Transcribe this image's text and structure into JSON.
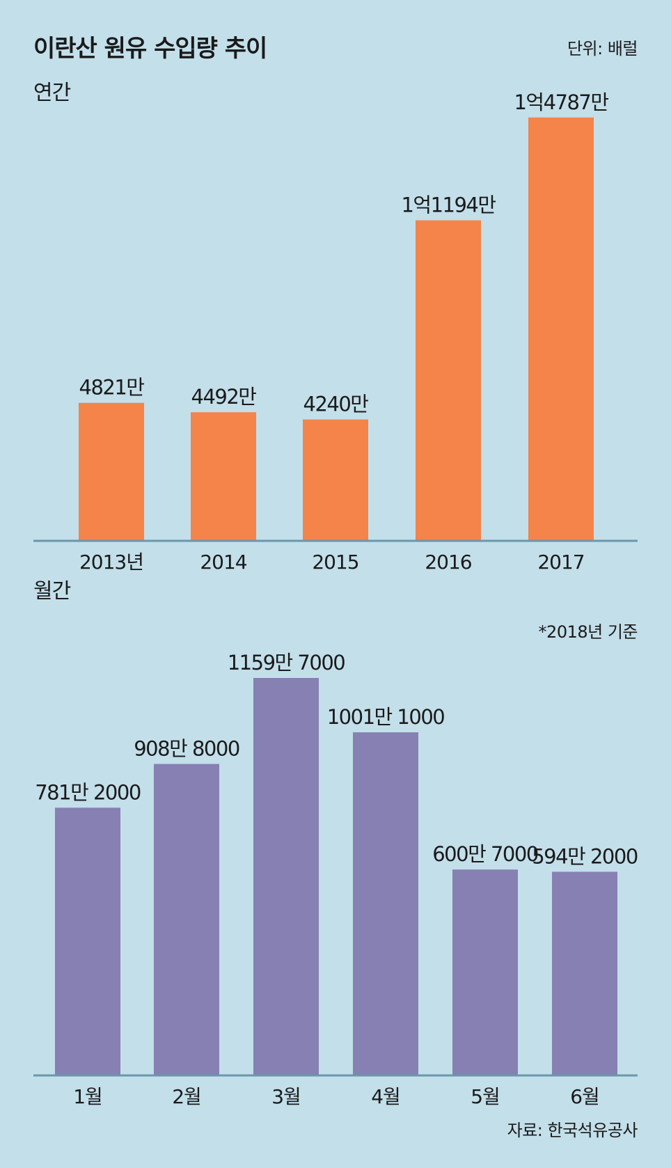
{
  "header": {
    "title": "이란산 원유 수입량 추이",
    "unit": "단위: 배럴"
  },
  "annual": {
    "label": "연간"
  },
  "monthly": {
    "label": "월간",
    "note": "*2018년 기준"
  },
  "source": "자료: 한국석유공사",
  "colors": {
    "background": "#c3dfea",
    "annual_bar": "#f4844a",
    "monthly_bar": "#8780b3",
    "axis": "#6a97ab"
  },
  "chart_data": [
    {
      "type": "bar",
      "title": "연간",
      "categories": [
        "2013년",
        "2014",
        "2015",
        "2016",
        "2017"
      ],
      "values": [
        48210000,
        44920000,
        42400000,
        111940000,
        147870000
      ],
      "data_labels": [
        "4821만",
        "4492만",
        "4240만",
        "1억1194만",
        "1억4787만"
      ],
      "ylim": [
        0,
        150000000
      ],
      "grid": false
    },
    {
      "type": "bar",
      "title": "월간",
      "categories": [
        "1월",
        "2월",
        "3월",
        "4월",
        "5월",
        "6월"
      ],
      "values": [
        7812000,
        9088000,
        11597000,
        10011000,
        6007000,
        5942000
      ],
      "data_labels": [
        "781만 2000",
        "908만 8000",
        "1159만 7000",
        "1001만 1000",
        "600만 7000",
        "594만 2000"
      ],
      "ylim": [
        0,
        11597000
      ],
      "grid": false
    }
  ]
}
